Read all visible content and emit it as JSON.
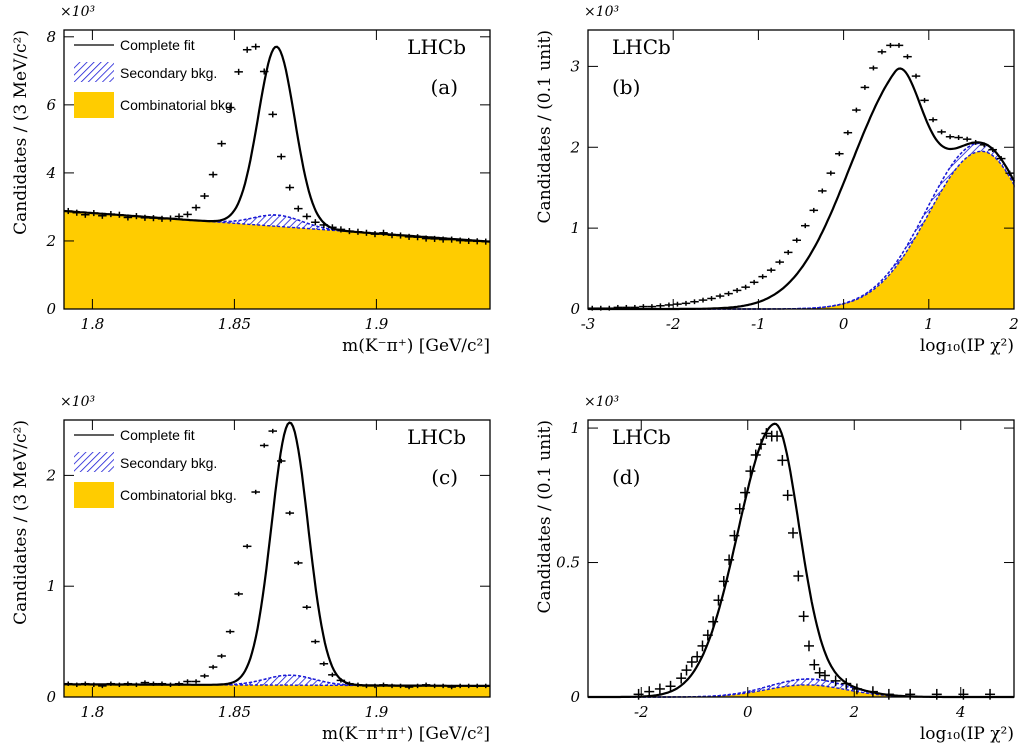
{
  "colors": {
    "combinatorial": "#ffcc00",
    "secondary": "#1a1ad6",
    "fit": "#000000"
  },
  "chart_data": [
    {
      "id": "a",
      "type": "line",
      "panel_tag": "(a)",
      "experiment": "LHCb",
      "exponent": "×10³",
      "xlabel": "m(K⁻π⁺) [GeV/c²]",
      "ylabel": "Candidates / (3 MeV/c²)",
      "xlim": [
        1.79,
        1.94
      ],
      "ylim": [
        0,
        8.2
      ],
      "xticks": [
        {
          "v": 1.8,
          "label": "1.8"
        },
        {
          "v": 1.85,
          "label": "1.85"
        },
        {
          "v": 1.9,
          "label": "1.9"
        }
      ],
      "yticks": [
        {
          "v": 0,
          "label": "0"
        },
        {
          "v": 2,
          "label": "2"
        },
        {
          "v": 4,
          "label": "4"
        },
        {
          "v": 6,
          "label": "6"
        },
        {
          "v": 8,
          "label": "8"
        }
      ],
      "legend": {
        "placement": "top-left",
        "entries": [
          "Complete fit",
          "Secondary bkg.",
          "Combinatorial bkg."
        ]
      },
      "model": {
        "kind": "mass",
        "comb": [
          2.88,
          1.98
        ],
        "peak": {
          "mu": 1.8648,
          "sigma": 0.0063,
          "amp": 4.95
        },
        "secondary": {
          "mu": 1.8652,
          "sigma": 0.0085,
          "amp": 0.33
        }
      },
      "points_x": [
        1.7915,
        1.7945,
        1.7975,
        1.8005,
        1.8035,
        1.8065,
        1.8095,
        1.8125,
        1.8155,
        1.8185,
        1.8215,
        1.8245,
        1.8275,
        1.8305,
        1.8335,
        1.8365,
        1.8395,
        1.8425,
        1.8455,
        1.8485,
        1.8515,
        1.8545,
        1.8575,
        1.8605,
        1.8635,
        1.8665,
        1.8695,
        1.8725,
        1.8755,
        1.8785,
        1.8815,
        1.8845,
        1.8875,
        1.8905,
        1.8935,
        1.8965,
        1.8995,
        1.9025,
        1.9055,
        1.9085,
        1.9115,
        1.9145,
        1.9175,
        1.9205,
        1.9235,
        1.9265,
        1.9295,
        1.9325,
        1.9355,
        1.9385
      ],
      "points_y": [
        2.88,
        2.83,
        2.77,
        2.82,
        2.74,
        2.79,
        2.77,
        2.69,
        2.73,
        2.68,
        2.67,
        2.65,
        2.66,
        2.72,
        2.78,
        2.98,
        3.32,
        3.95,
        4.86,
        5.92,
        6.97,
        7.62,
        7.71,
        6.98,
        5.72,
        4.48,
        3.57,
        2.95,
        2.72,
        2.55,
        2.47,
        2.4,
        2.34,
        2.29,
        2.27,
        2.24,
        2.2,
        2.24,
        2.17,
        2.16,
        2.12,
        2.11,
        2.07,
        2.06,
        2.04,
        2.04,
        2.01,
        2.0,
        1.99,
        1.98
      ],
      "points_err": 0.09
    },
    {
      "id": "b",
      "type": "line",
      "panel_tag": "(b)",
      "experiment": "LHCb",
      "exponent": "×10³",
      "xlabel": "log₁₀(IP χ²)",
      "ylabel": "Candidates / (0.1 unit)",
      "xlim": [
        -3,
        2
      ],
      "ylim": [
        0,
        3.45
      ],
      "xticks": [
        {
          "v": -3,
          "label": "-3"
        },
        {
          "v": -2,
          "label": "-2"
        },
        {
          "v": -1,
          "label": "-1"
        },
        {
          "v": 0,
          "label": "0"
        },
        {
          "v": 1,
          "label": "1"
        },
        {
          "v": 2,
          "label": "2"
        }
      ],
      "yticks": [
        {
          "v": 0,
          "label": "0"
        },
        {
          "v": 1,
          "label": "1"
        },
        {
          "v": 2,
          "label": "2"
        },
        {
          "v": 3,
          "label": "3"
        }
      ],
      "model": {
        "kind": "ip",
        "signal": {
          "mu": 0.6,
          "sl": 0.62,
          "sr": 0.3,
          "amp": 2.38
        },
        "comb": {
          "mu": 1.62,
          "sl": 0.62,
          "sr": 0.55,
          "amp": 1.95
        },
        "secondary": {
          "mu": 1.3,
          "sl": 0.5,
          "sr": 0.5,
          "amp": 0.12
        }
      },
      "points_x": [
        -2.95,
        -2.85,
        -2.75,
        -2.65,
        -2.55,
        -2.45,
        -2.35,
        -2.25,
        -2.15,
        -2.05,
        -1.95,
        -1.85,
        -1.75,
        -1.65,
        -1.55,
        -1.45,
        -1.35,
        -1.25,
        -1.15,
        -1.05,
        -0.95,
        -0.85,
        -0.75,
        -0.65,
        -0.55,
        -0.45,
        -0.35,
        -0.25,
        -0.15,
        -0.05,
        0.05,
        0.15,
        0.25,
        0.35,
        0.45,
        0.55,
        0.65,
        0.75,
        0.85,
        0.95,
        1.05,
        1.15,
        1.25,
        1.35,
        1.45,
        1.55,
        1.65,
        1.75,
        1.85,
        1.95
      ],
      "points_y": [
        0.01,
        0.01,
        0.01,
        0.02,
        0.02,
        0.02,
        0.03,
        0.03,
        0.04,
        0.05,
        0.06,
        0.07,
        0.09,
        0.11,
        0.13,
        0.16,
        0.19,
        0.23,
        0.27,
        0.33,
        0.4,
        0.48,
        0.58,
        0.7,
        0.85,
        1.03,
        1.22,
        1.46,
        1.68,
        1.92,
        2.18,
        2.46,
        2.74,
        2.98,
        3.18,
        3.26,
        3.26,
        3.12,
        2.88,
        2.58,
        2.34,
        2.19,
        2.13,
        2.12,
        2.1,
        2.06,
        2.03,
        1.97,
        1.86,
        1.68
      ],
      "points_err": 0.03
    },
    {
      "id": "c",
      "type": "line",
      "panel_tag": "(c)",
      "experiment": "LHCb",
      "exponent": "×10³",
      "xlabel": "m(K⁻π⁺π⁺) [GeV/c²]",
      "ylabel": "Candidates / (3 MeV/c²)",
      "xlim": [
        1.79,
        1.94
      ],
      "ylim": [
        0,
        2.5
      ],
      "xticks": [
        {
          "v": 1.8,
          "label": "1.8"
        },
        {
          "v": 1.85,
          "label": "1.85"
        },
        {
          "v": 1.9,
          "label": "1.9"
        }
      ],
      "yticks": [
        {
          "v": 0,
          "label": "0"
        },
        {
          "v": 1,
          "label": "1"
        },
        {
          "v": 2,
          "label": "2"
        }
      ],
      "legend": {
        "placement": "top-left",
        "entries": [
          "Complete fit",
          "Secondary bkg.",
          "Combinatorial bkg."
        ]
      },
      "model": {
        "kind": "mass",
        "comb": [
          0.115,
          0.1
        ],
        "peak": {
          "mu": 1.8695,
          "sigma": 0.0064,
          "amp": 2.28
        },
        "secondary": {
          "mu": 1.8695,
          "sigma": 0.0085,
          "amp": 0.09
        }
      },
      "points_x": [
        1.7915,
        1.7945,
        1.7975,
        1.8005,
        1.8035,
        1.8065,
        1.8095,
        1.8125,
        1.8155,
        1.8185,
        1.8215,
        1.8245,
        1.8275,
        1.8305,
        1.8335,
        1.8365,
        1.8395,
        1.8425,
        1.8455,
        1.8485,
        1.8515,
        1.8545,
        1.8575,
        1.8605,
        1.8635,
        1.8665,
        1.8695,
        1.8725,
        1.8755,
        1.8785,
        1.8815,
        1.8845,
        1.8875,
        1.8905,
        1.8935,
        1.8965,
        1.8995,
        1.9025,
        1.9055,
        1.9085,
        1.9115,
        1.9145,
        1.9175,
        1.9205,
        1.9235,
        1.9265,
        1.9295,
        1.9325,
        1.9355,
        1.9385
      ],
      "points_y": [
        0.12,
        0.11,
        0.12,
        0.11,
        0.1,
        0.12,
        0.11,
        0.12,
        0.11,
        0.13,
        0.12,
        0.12,
        0.11,
        0.12,
        0.14,
        0.14,
        0.19,
        0.27,
        0.37,
        0.59,
        0.93,
        1.36,
        1.85,
        2.27,
        2.4,
        2.13,
        1.66,
        1.21,
        0.81,
        0.5,
        0.3,
        0.2,
        0.15,
        0.12,
        0.11,
        0.1,
        0.1,
        0.11,
        0.1,
        0.1,
        0.09,
        0.1,
        0.11,
        0.1,
        0.1,
        0.09,
        0.1,
        0.1,
        0.1,
        0.1
      ],
      "points_err": 0.02
    },
    {
      "id": "d",
      "type": "line",
      "panel_tag": "(d)",
      "experiment": "LHCb",
      "exponent": "×10³",
      "xlabel": "log₁₀(IP χ²)",
      "ylabel": "Candidates / (0.1 unit)",
      "xlim": [
        -3,
        5
      ],
      "ylim": [
        0,
        1.03
      ],
      "xticks": [
        {
          "v": -2,
          "label": "-2"
        },
        {
          "v": 0,
          "label": "0"
        },
        {
          "v": 2,
          "label": "2"
        },
        {
          "v": 4,
          "label": "4"
        }
      ],
      "yticks": [
        {
          "v": 0,
          "label": "0"
        },
        {
          "v": 0.5,
          "label": "0.5"
        },
        {
          "v": 1,
          "label": "1"
        }
      ],
      "model": {
        "kind": "ip",
        "signal": {
          "mu": 0.5,
          "sl": 0.7,
          "sr": 0.45,
          "amp": 0.97
        },
        "comb": {
          "mu": 1.1,
          "sl": 0.75,
          "sr": 0.75,
          "amp": 0.045
        },
        "secondary": {
          "mu": 1.2,
          "sl": 0.7,
          "sr": 0.7,
          "amp": 0.022
        }
      },
      "points_x": [
        -2.05,
        -1.85,
        -1.65,
        -1.45,
        -1.25,
        -1.15,
        -1.05,
        -0.95,
        -0.85,
        -0.75,
        -0.65,
        -0.55,
        -0.45,
        -0.35,
        -0.25,
        -0.15,
        -0.05,
        0.05,
        0.15,
        0.25,
        0.35,
        0.45,
        0.55,
        0.65,
        0.75,
        0.85,
        0.95,
        1.05,
        1.15,
        1.25,
        1.35,
        1.45,
        1.65,
        1.85,
        2.05,
        2.35,
        2.65,
        3.05,
        3.55,
        4.05,
        4.55
      ],
      "points_y": [
        0.01,
        0.02,
        0.03,
        0.04,
        0.07,
        0.1,
        0.13,
        0.15,
        0.19,
        0.23,
        0.28,
        0.36,
        0.43,
        0.51,
        0.6,
        0.7,
        0.76,
        0.84,
        0.9,
        0.94,
        0.98,
        0.97,
        0.97,
        0.88,
        0.75,
        0.61,
        0.45,
        0.3,
        0.19,
        0.12,
        0.09,
        0.08,
        0.06,
        0.05,
        0.03,
        0.02,
        0.01,
        0.01,
        0.01,
        0.01,
        0.01
      ],
      "points_err": 0.02
    }
  ]
}
